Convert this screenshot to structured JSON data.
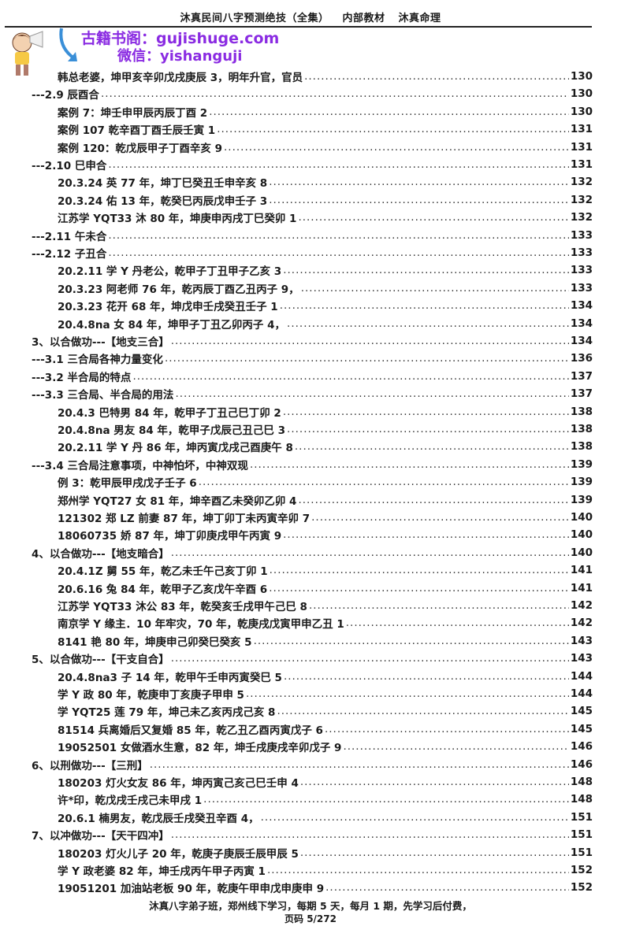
{
  "header": {
    "title": "沐真民间八字预测绝技（全集）",
    "subtitle": "内部教材",
    "brand": "沐真命理"
  },
  "watermark": {
    "line1": "古籍书阁：gujishuge.com",
    "line2": "微信：yishanguji",
    "color": "#8a2be2"
  },
  "toc": [
    {
      "level": 2,
      "text": "韩总老婆，坤甲亥辛卯戊戌庚辰 3，明年升官，官员",
      "page": "130"
    },
    {
      "level": 1,
      "text": "---2.9 辰酉合",
      "page": "130"
    },
    {
      "level": 2,
      "text": "案例 7：坤壬申甲辰丙辰丁酉 2",
      "page": "130"
    },
    {
      "level": 2,
      "text": "案例 107  乾辛酉丁酉壬辰壬寅 1",
      "page": "131"
    },
    {
      "level": 2,
      "text": "案例 120：乾戊辰甲子丁酉辛亥 9",
      "page": "131"
    },
    {
      "level": 1,
      "text": "---2.10 巳申合",
      "page": "131"
    },
    {
      "level": 2,
      "text": "20.3.24 英 77 年，坤丁巳癸丑壬申辛亥 8",
      "page": "132"
    },
    {
      "level": 2,
      "text": "20.3.24 佑 13 年，乾癸巳丙辰戊申壬子 3",
      "page": "132"
    },
    {
      "level": 2,
      "text": "江苏学 YQT33 沐 80 年，坤庚申丙戌丁巳癸卯 1",
      "page": "132"
    },
    {
      "level": 1,
      "text": "---2.11 午未合",
      "page": "133"
    },
    {
      "level": 1,
      "text": "---2.12 子丑合",
      "page": "133"
    },
    {
      "level": 2,
      "text": "20.2.11 学 Y 丹老公，乾甲子丁丑甲子乙亥 3",
      "page": "133"
    },
    {
      "level": 2,
      "text": "20.3.23 阿老师 76 年，乾丙辰丁酉乙丑丙子 9，",
      "page": "133"
    },
    {
      "level": 2,
      "text": "20.3.23 花开 68 年，坤戊申壬戌癸丑壬子 1",
      "page": "134"
    },
    {
      "level": 2,
      "text": "20.4.8na 女 84 年，坤甲子丁丑乙卯丙子 4，",
      "page": "134"
    },
    {
      "level": 1,
      "text": "3、以合做功---【地支三合】",
      "page": "134"
    },
    {
      "level": 1,
      "text": "---3.1 三合局各神力量变化",
      "page": "136"
    },
    {
      "level": 1,
      "text": "---3.2 半合局的特点",
      "page": "137"
    },
    {
      "level": 1,
      "text": "---3.3 三合局、半合局的用法",
      "page": "137"
    },
    {
      "level": 2,
      "text": "20.4.3 巴特男 84 年，乾甲子丁丑己巳丁卯 2",
      "page": "138"
    },
    {
      "level": 2,
      "text": "20.4.8na 男友 84 年，乾甲子戊辰己丑己巳 3",
      "page": "138"
    },
    {
      "level": 2,
      "text": "20.2.11 学 Y 丹 86 年，坤丙寅戊戌己酉庚午 8",
      "page": "138"
    },
    {
      "level": 1,
      "text": "---3.4 三合局注意事项，中神怕坏，中神双现",
      "page": "139"
    },
    {
      "level": 2,
      "text": "例 3：乾甲辰甲戌戊子壬子 6",
      "page": "139"
    },
    {
      "level": 2,
      "text": "郑州学 YQT27 女 81 年，坤辛酉乙未癸卯乙卯 4",
      "page": "139"
    },
    {
      "level": 2,
      "text": "121302 郑 LZ 前妻 87 年，坤丁卯丁未丙寅辛卯 7",
      "page": "140"
    },
    {
      "level": 2,
      "text": "18060735 娇 87 年，坤丁卯庚戌甲午丙寅 9",
      "page": "140"
    },
    {
      "level": 1,
      "text": "4、以合做功---【地支暗合】",
      "page": "140"
    },
    {
      "level": 2,
      "text": "20.4.1Z 舅 55 年，乾乙未壬午己亥丁卯 1",
      "page": "141"
    },
    {
      "level": 2,
      "text": "20.6.16 兔 84 年，乾甲子乙亥戊午辛酉 6",
      "page": "141"
    },
    {
      "level": 2,
      "text": "江苏学 YQT33 沐公 83 年，乾癸亥壬戌甲午己巳 8",
      "page": "142"
    },
    {
      "level": 2,
      "text": "南京学 Y 缘主．10 年牢灾，70 年，乾庚戌戊寅甲申乙丑 1",
      "page": "142"
    },
    {
      "level": 2,
      "text": "8141 艳 80 年，坤庚申己卯癸巳癸亥 5",
      "page": "143"
    },
    {
      "level": 1,
      "text": "5、以合做功---【干支自合】",
      "page": "143"
    },
    {
      "level": 2,
      "text": "20.4.8na3 子 14 年，乾甲午壬申丙寅癸巳 5",
      "page": "144"
    },
    {
      "level": 2,
      "text": "学 Y 政 80 年，乾庚申丁亥庚子甲申 5",
      "page": "144"
    },
    {
      "level": 2,
      "text": "学 YQT25 莲 79 年，坤己未乙亥丙戌己亥 8",
      "page": "145"
    },
    {
      "level": 2,
      "text": "81514 兵离婚后又复婚 85 年，乾乙丑乙酉丙寅戊子 6",
      "page": "145"
    },
    {
      "level": 2,
      "text": "19052501 女做酒水生意，82 年，坤壬戌庚戌辛卯戊子 9",
      "page": "146"
    },
    {
      "level": 1,
      "text": "6、以刑做功---【三刑】",
      "page": "146"
    },
    {
      "level": 2,
      "text": "180203 灯火女友 86 年，坤丙寅己亥己巳壬申 4",
      "page": "148"
    },
    {
      "level": 2,
      "text": "许*印，乾戊戌壬戌己未甲戌 1",
      "page": "148"
    },
    {
      "level": 2,
      "text": "20.6.1 楠男友，乾戊辰壬戌癸丑辛酉 4，",
      "page": "151"
    },
    {
      "level": 1,
      "text": "7、以冲做功---【天干四冲】",
      "page": "151"
    },
    {
      "level": 2,
      "text": "180203 灯火儿子 20 年，乾庚子庚辰壬辰甲辰 5",
      "page": "151"
    },
    {
      "level": 2,
      "text": "学 Y 政老婆 82 年，坤壬戌丙午甲子丙寅 1",
      "page": "152"
    },
    {
      "level": 2,
      "text": "19051201 加油站老板 90 年，乾庚午甲申戊申庚申 9",
      "page": "152"
    }
  ],
  "footer": {
    "note": "沐真八字弟子班，郑州线下学习，每期 5 天，每月 1 期，先学习后付费，",
    "page_label": "页码 5/272"
  }
}
